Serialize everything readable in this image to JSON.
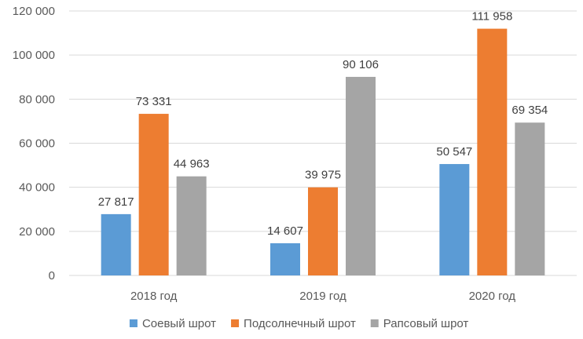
{
  "chart_data": {
    "type": "bar",
    "title": "",
    "xlabel": "",
    "ylabel": "",
    "categories": [
      "2018 год",
      "2019 год",
      "2020 год"
    ],
    "ylim": [
      0,
      120000
    ],
    "yticks": [
      0,
      20000,
      40000,
      60000,
      80000,
      100000,
      120000
    ],
    "ytick_labels": [
      "0",
      "20 000",
      "40 000",
      "60 000",
      "80 000",
      "100 000",
      "120 000"
    ],
    "grid": true,
    "legend_position": "bottom",
    "series": [
      {
        "name": "Соевый шрот",
        "color": "#5B9BD5",
        "values": [
          27817,
          14607,
          50547
        ],
        "labels": [
          "27 817",
          "14 607",
          "50 547"
        ]
      },
      {
        "name": "Подсолнечный шрот",
        "color": "#ED7D31",
        "values": [
          73331,
          39975,
          111958
        ],
        "labels": [
          "73 331",
          "39 975",
          "111 958"
        ]
      },
      {
        "name": "Рапсовый шрот",
        "color": "#A5A5A5",
        "values": [
          44963,
          90106,
          69354
        ],
        "labels": [
          "44 963",
          "90 106",
          "69 354"
        ]
      }
    ]
  }
}
